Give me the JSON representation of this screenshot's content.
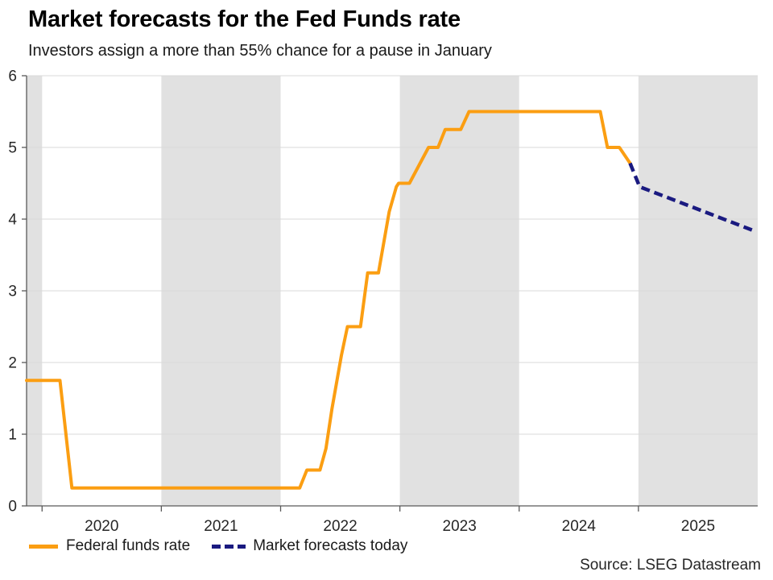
{
  "header": {
    "title": "Market forecasts for the Fed Funds rate",
    "subtitle": "Investors assign a more than 55% chance for a pause in January"
  },
  "chart_data": {
    "type": "line",
    "title": "Market forecasts for the Fed Funds rate",
    "subtitle": "Investors assign a more than 55% chance for a pause in January",
    "xlabel": "",
    "ylabel": "",
    "ylim": [
      0,
      6
    ],
    "xlim": [
      2019.87,
      2026.0
    ],
    "y_ticks": [
      0,
      1,
      2,
      3,
      4,
      5,
      6
    ],
    "x_ticks": [
      2020,
      2021,
      2022,
      2023,
      2024,
      2025
    ],
    "x_tick_labels": [
      "2020",
      "2021",
      "2022",
      "2023",
      "2024",
      "2025"
    ],
    "grid": "horizontal",
    "legend_position": "bottom-left",
    "shaded_year_bands": [
      [
        2019.87,
        2020
      ],
      [
        2021,
        2022
      ],
      [
        2023,
        2024
      ],
      [
        2025,
        2026
      ]
    ],
    "series": [
      {
        "name": "Federal funds rate",
        "style": "solid",
        "color": "#FB9E12",
        "width": 4,
        "points": [
          [
            2019.87,
            1.75
          ],
          [
            2020.15,
            1.75
          ],
          [
            2020.25,
            0.25
          ],
          [
            2022.16,
            0.25
          ],
          [
            2022.22,
            0.5
          ],
          [
            2022.33,
            0.5
          ],
          [
            2022.38,
            0.8
          ],
          [
            2022.43,
            1.35
          ],
          [
            2022.51,
            2.1
          ],
          [
            2022.56,
            2.5
          ],
          [
            2022.67,
            2.5
          ],
          [
            2022.73,
            3.25
          ],
          [
            2022.82,
            3.25
          ],
          [
            2022.91,
            4.1
          ],
          [
            2022.97,
            4.45
          ],
          [
            2022.99,
            4.5
          ],
          [
            2023.08,
            4.5
          ],
          [
            2023.24,
            5.0
          ],
          [
            2023.32,
            5.0
          ],
          [
            2023.38,
            5.25
          ],
          [
            2023.51,
            5.25
          ],
          [
            2023.58,
            5.5
          ],
          [
            2024.68,
            5.5
          ],
          [
            2024.74,
            5.0
          ],
          [
            2024.84,
            5.0
          ],
          [
            2024.93,
            4.78
          ]
        ]
      },
      {
        "name": "Market forecasts today",
        "style": "dashed",
        "color": "#1A1A80",
        "width": 4.5,
        "points": [
          [
            2024.93,
            4.78
          ],
          [
            2025.01,
            4.45
          ],
          [
            2025.98,
            3.83
          ]
        ]
      }
    ]
  },
  "legend": {
    "items": [
      {
        "label": "Federal funds rate",
        "swatch": "solid-orange"
      },
      {
        "label": "Market forecasts today",
        "swatch": "dashed-navy"
      }
    ]
  },
  "source": {
    "text": "Source: LSEG Datastream"
  },
  "colors": {
    "fed_line": "#FB9E12",
    "forecast_line": "#1A1A80",
    "band": "#E1E1E1",
    "grid": "#D9D9D9",
    "axis": "#595959",
    "tick_label": "#262626"
  }
}
